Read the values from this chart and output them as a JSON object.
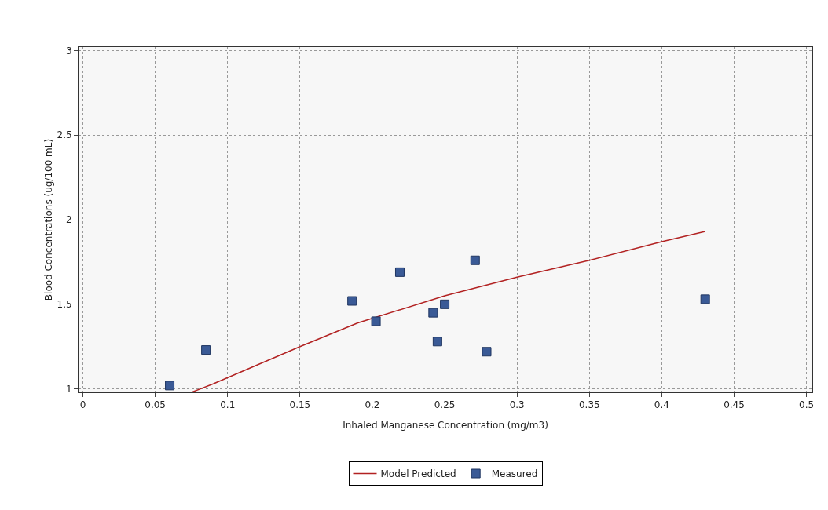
{
  "chart_data": {
    "type": "scatter",
    "xlabel": "Inhaled Manganese Concentration (mg/m3)",
    "ylabel": "Blood Concentrations (ug/100 mL)",
    "xlim": [
      -0.003,
      0.504
    ],
    "ylim": [
      0.98,
      3.02
    ],
    "xticks": [
      0,
      0.05,
      0.1,
      0.15,
      0.2,
      0.25,
      0.3,
      0.35,
      0.4,
      0.45,
      0.5
    ],
    "yticks": [
      1,
      1.5,
      2,
      2.5,
      3
    ],
    "grid": true,
    "legend": "bottom",
    "series": [
      {
        "name": "Model Predicted",
        "type": "line",
        "color": "#b22222",
        "marker": "none",
        "line_style": "solid",
        "x": [
          0.075,
          0.09,
          0.15,
          0.19,
          0.25,
          0.3,
          0.35,
          0.4,
          0.43
        ],
        "values": [
          0.98,
          1.03,
          1.25,
          1.39,
          1.55,
          1.66,
          1.76,
          1.87,
          1.93
        ]
      },
      {
        "name": "Measured",
        "color": "#3a5a96",
        "marker": "square",
        "x": [
          0.06,
          0.085,
          0.186,
          0.2025,
          0.219,
          0.242,
          0.245,
          0.25,
          0.271,
          0.279,
          0.43
        ],
        "values": [
          1.02,
          1.23,
          1.52,
          1.4,
          1.69,
          1.45,
          1.28,
          1.5,
          1.76,
          1.22,
          1.53
        ]
      }
    ]
  }
}
